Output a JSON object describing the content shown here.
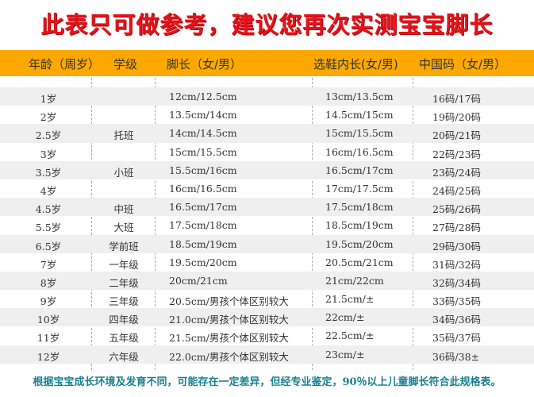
{
  "title": "此表只可做参考，建议您再次实测宝宝脚长",
  "colors": {
    "title": "#e0141c",
    "header_bg": "#fca800",
    "footer": "#1a7f8e",
    "row_alt": "#efefef"
  },
  "headers": {
    "age": "年龄（周岁）",
    "grade": "学级",
    "foot": "脚长（女/男）",
    "shoe": "选鞋内长(女/男)",
    "code": "中国码（女/男）"
  },
  "rows": [
    {
      "age": "1岁",
      "grade": "",
      "foot": "12cm/12.5cm",
      "shoe": "13cm/13.5cm",
      "code": "16码/17码"
    },
    {
      "age": "2岁",
      "grade": "",
      "foot": "13.5cm/14cm",
      "shoe": "14.5cm/15cm",
      "code": "19码/20码"
    },
    {
      "age": "2.5岁",
      "grade": "托班",
      "foot": "14cm/14.5cm",
      "shoe": "15cm/15.5cm",
      "code": "20码/21码"
    },
    {
      "age": "3岁",
      "grade": "",
      "foot": "15cm/15.5cm",
      "shoe": "16cm/16.5cm",
      "code": "22码/23码"
    },
    {
      "age": "3.5岁",
      "grade": "小班",
      "foot": "15.5cm/16cm",
      "shoe": "16.5cm/17cm",
      "code": "23码/24码"
    },
    {
      "age": "4岁",
      "grade": "",
      "foot": "16cm/16.5cm",
      "shoe": "17cm/17.5cm",
      "code": "24码/25码"
    },
    {
      "age": "4.5岁",
      "grade": "中班",
      "foot": "16.5cm/17cm",
      "shoe": "17.5cm/18cm",
      "code": "25码/26码"
    },
    {
      "age": "5.5岁",
      "grade": "大班",
      "foot": "17.5cm/18cm",
      "shoe": "18.5cm/19cm",
      "code": "27码/28码"
    },
    {
      "age": "6.5岁",
      "grade": "学前班",
      "foot": "18.5cm/19cm",
      "shoe": "19.5cm/20cm",
      "code": "29码/30码"
    },
    {
      "age": "7岁",
      "grade": "一年级",
      "foot": "19.5cm/20cm",
      "shoe": "20.5cm/21cm",
      "code": "31码/32码"
    },
    {
      "age": "8岁",
      "grade": "二年级",
      "foot": "20cm/21cm",
      "shoe": "21cm/22cm",
      "code": "32码/34码"
    },
    {
      "age": "9岁",
      "grade": "三年级",
      "foot": "20.5cm/男孩个体区别较大",
      "shoe": "21.5cm/±",
      "code": "33码/35码"
    },
    {
      "age": "10岁",
      "grade": "四年级",
      "foot": "21.0cm/男孩个体区别较大",
      "shoe": "22cm/±",
      "code": "34码/36码"
    },
    {
      "age": "11岁",
      "grade": "五年级",
      "foot": "21.5cm/男孩个体区别较大",
      "shoe": "22.5cm/±",
      "code": "35码/37码"
    },
    {
      "age": "12岁",
      "grade": "六年级",
      "foot": "22.0cm/男孩个体区别较大",
      "shoe": "23cm/±",
      "code": "36码/38±"
    }
  ],
  "footer": "根据宝宝成长环境及发育不同，可能存在一定差异，但经专业鉴定，90％以上儿童脚长符合此规格表。"
}
